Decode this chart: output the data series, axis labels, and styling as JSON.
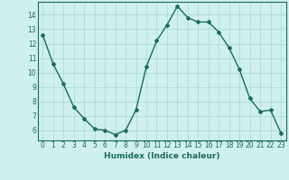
{
  "x": [
    0,
    1,
    2,
    3,
    4,
    5,
    6,
    7,
    8,
    9,
    10,
    11,
    12,
    13,
    14,
    15,
    16,
    17,
    18,
    19,
    20,
    21,
    22,
    23
  ],
  "y": [
    12.6,
    10.6,
    9.2,
    7.6,
    6.8,
    6.1,
    6.0,
    5.7,
    6.0,
    7.4,
    10.4,
    12.2,
    13.3,
    14.6,
    13.8,
    13.5,
    13.5,
    12.8,
    11.7,
    10.2,
    8.2,
    7.3,
    7.4,
    5.8
  ],
  "line_color": "#1a6b5e",
  "marker": "D",
  "marker_size": 2.0,
  "bg_color": "#cff0ec",
  "grid_color": "#a8d8d0",
  "xlabel": "Humidex (Indice chaleur)",
  "xlabel_fontsize": 6.5,
  "tick_fontsize": 5.5,
  "xlim": [
    -0.5,
    23.5
  ],
  "ylim": [
    5.3,
    14.9
  ],
  "yticks": [
    6,
    7,
    8,
    9,
    10,
    11,
    12,
    13,
    14
  ],
  "xticks": [
    0,
    1,
    2,
    3,
    4,
    5,
    6,
    7,
    8,
    9,
    10,
    11,
    12,
    13,
    14,
    15,
    16,
    17,
    18,
    19,
    20,
    21,
    22,
    23
  ]
}
